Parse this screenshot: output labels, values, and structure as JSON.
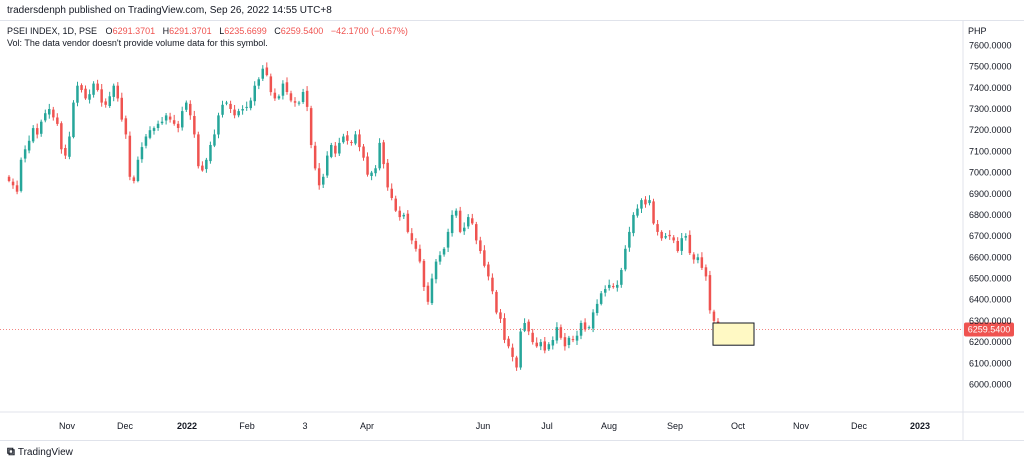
{
  "header": {
    "publisher": "tradersdenph published on TradingView.com, Sep 26, 2022 14:55 UTC+8"
  },
  "footer": {
    "brand": "TradingView",
    "logo": "tradingview-logo-icon"
  },
  "colors": {
    "up": "#26a69a",
    "down": "#ef5350",
    "text": "#131722",
    "muted": "#787b86",
    "grid": "#e0e3eb",
    "highlight_fill": "#fff9c4",
    "highlight_stroke": "#131722"
  },
  "chart_data": {
    "type": "candlestick",
    "legend": {
      "symbol": "PSEI INDEX, 1D, PSE",
      "open_label": "O",
      "open": "6291.3701",
      "high_label": "H",
      "high": "6291.3701",
      "low_label": "L",
      "low": "6235.6699",
      "close_label": "C",
      "close": "6259.5400",
      "change": "−42.1700 (−0.67%)",
      "volume_note": "Vol: The data vendor doesn't provide volume data for this symbol."
    },
    "currency": "PHP",
    "ylim": [
      5870,
      7720
    ],
    "y_ticks": [
      "7600.0000",
      "7500.0000",
      "7400.0000",
      "7300.0000",
      "7200.0000",
      "7100.0000",
      "7000.0000",
      "6900.0000",
      "6800.0000",
      "6700.0000",
      "6600.0000",
      "6500.0000",
      "6400.0000",
      "6300.0000",
      "6200.0000",
      "6100.0000",
      "6000.0000"
    ],
    "last_price": "6259.5400",
    "x_ticks": [
      {
        "label": "Nov",
        "bold": false
      },
      {
        "label": "Dec",
        "bold": false
      },
      {
        "label": "2022",
        "bold": true
      },
      {
        "label": "Feb",
        "bold": false
      },
      {
        "label": "3",
        "bold": false
      },
      {
        "label": "Apr",
        "bold": false
      },
      {
        "label": "Jun",
        "bold": false
      },
      {
        "label": "Jul",
        "bold": false
      },
      {
        "label": "Aug",
        "bold": false
      },
      {
        "label": "Sep",
        "bold": false
      },
      {
        "label": "Oct",
        "bold": false
      },
      {
        "label": "Nov",
        "bold": false
      },
      {
        "label": "Dec",
        "bold": false
      },
      {
        "label": "2023",
        "bold": true
      }
    ],
    "highlight_box": {
      "price_top": 6290,
      "price_bottom": 6185
    },
    "closes": [
      6960,
      6940,
      6910,
      7060,
      7110,
      7150,
      7210,
      7180,
      7240,
      7280,
      7300,
      7260,
      7230,
      7110,
      7080,
      7170,
      7330,
      7410,
      7390,
      7350,
      7370,
      7420,
      7390,
      7330,
      7320,
      7360,
      7410,
      7350,
      7250,
      7180,
      6980,
      6960,
      7060,
      7120,
      7170,
      7200,
      7210,
      7230,
      7240,
      7270,
      7250,
      7230,
      7210,
      7290,
      7330,
      7270,
      7180,
      7030,
      7010,
      7060,
      7130,
      7180,
      7270,
      7320,
      7330,
      7300,
      7270,
      7290,
      7300,
      7310,
      7340,
      7410,
      7440,
      7490,
      7460,
      7380,
      7350,
      7360,
      7420,
      7380,
      7340,
      7330,
      7330,
      7380,
      7310,
      7130,
      7020,
      6940,
      6980,
      7080,
      7130,
      7090,
      7140,
      7170,
      7150,
      7140,
      7180,
      7120,
      7070,
      6990,
      7000,
      7020,
      7140,
      7040,
      6930,
      6880,
      6820,
      6790,
      6800,
      6720,
      6680,
      6640,
      6580,
      6460,
      6390,
      6500,
      6580,
      6610,
      6640,
      6720,
      6800,
      6820,
      6720,
      6740,
      6790,
      6760,
      6680,
      6630,
      6560,
      6510,
      6440,
      6340,
      6310,
      6210,
      6180,
      6130,
      6080,
      6250,
      6290,
      6250,
      6200,
      6180,
      6200,
      6160,
      6190,
      6210,
      6270,
      6220,
      6180,
      6220,
      6210,
      6230,
      6290,
      6260,
      6270,
      6340,
      6380,
      6430,
      6450,
      6470,
      6460,
      6470,
      6540,
      6640,
      6720,
      6800,
      6830,
      6870,
      6850,
      6870,
      6760,
      6720,
      6690,
      6700,
      6700,
      6680,
      6630,
      6690,
      6700,
      6620,
      6590,
      6600,
      6550,
      6510,
      6350,
      6300,
      6259.54
    ]
  }
}
